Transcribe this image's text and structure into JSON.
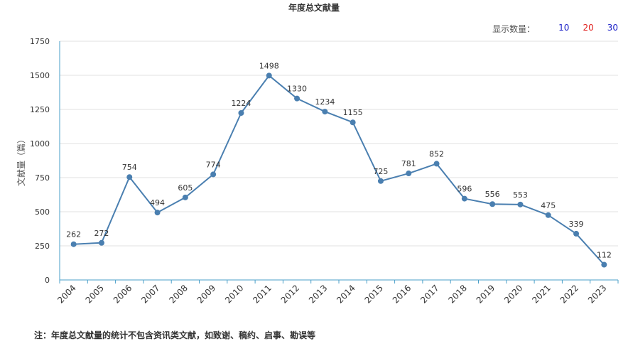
{
  "header": {
    "title": "年度总文献量"
  },
  "controls": {
    "label": "显示数量：",
    "options": [
      {
        "text": "10",
        "color": "#1e23c8"
      },
      {
        "text": "20",
        "color": "#e0201e"
      },
      {
        "text": "30",
        "color": "#1e23c8"
      }
    ]
  },
  "footnote": "注：年度总文献量的统计不包含资讯类文献，如致谢、稿约、启事、勘误等",
  "colors": {
    "line": "#4a7fb0",
    "axis": "#4a9fc9",
    "grid": "#e0e0e0"
  },
  "chart_data": {
    "type": "line",
    "title": "年度总文献量",
    "ylabel": "文献量（篇）",
    "xlabel": "",
    "categories": [
      "2004",
      "2005",
      "2006",
      "2007",
      "2008",
      "2009",
      "2010",
      "2011",
      "2012",
      "2013",
      "2014",
      "2015",
      "2016",
      "2017",
      "2018",
      "2019",
      "2020",
      "2021",
      "2022",
      "2023"
    ],
    "series": [
      {
        "values": [
          262,
          272,
          754,
          494,
          605,
          774,
          1224,
          1498,
          1330,
          1234,
          1155,
          725,
          781,
          852,
          596,
          556,
          553,
          475,
          339,
          112
        ]
      }
    ],
    "ylim": [
      0,
      1750
    ],
    "yticks": [
      0,
      250,
      500,
      750,
      1000,
      1250,
      1500,
      1750
    ],
    "grid": true,
    "data_labels": true
  }
}
